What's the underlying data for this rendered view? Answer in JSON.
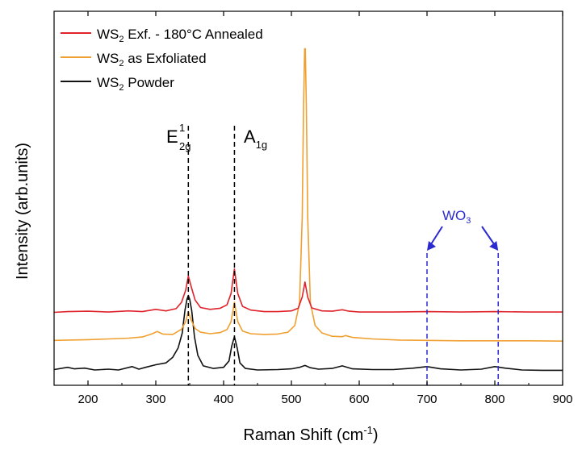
{
  "chart_data": {
    "type": "line",
    "xlabel": "Raman Shift (cm",
    "xlabel_sup": "-1",
    "xlabel_end": ")",
    "ylabel": "Intensity (arb.units)",
    "xlim": [
      150,
      900
    ],
    "ylim": [
      0,
      1
    ],
    "xticks": [
      200,
      300,
      400,
      500,
      600,
      700,
      800,
      900
    ],
    "yticks_shown": false,
    "grid": false,
    "legend_position": "top-left",
    "series": [
      {
        "name_main": "WS",
        "name_sub": "2",
        "name_rest": " Exf. - 180°C Annealed",
        "color": "#e0222a",
        "baseline": 0.195,
        "points": [
          [
            150,
            0.195
          ],
          [
            170,
            0.197
          ],
          [
            200,
            0.198
          ],
          [
            230,
            0.196
          ],
          [
            260,
            0.199
          ],
          [
            280,
            0.197
          ],
          [
            300,
            0.203
          ],
          [
            315,
            0.199
          ],
          [
            330,
            0.205
          ],
          [
            338,
            0.222
          ],
          [
            344,
            0.254
          ],
          [
            348,
            0.292
          ],
          [
            352,
            0.265
          ],
          [
            358,
            0.228
          ],
          [
            366,
            0.208
          ],
          [
            380,
            0.203
          ],
          [
            395,
            0.206
          ],
          [
            405,
            0.215
          ],
          [
            411,
            0.245
          ],
          [
            416,
            0.311
          ],
          [
            421,
            0.245
          ],
          [
            428,
            0.211
          ],
          [
            440,
            0.201
          ],
          [
            460,
            0.197
          ],
          [
            480,
            0.197
          ],
          [
            500,
            0.199
          ],
          [
            510,
            0.206
          ],
          [
            516,
            0.236
          ],
          [
            520,
            0.276
          ],
          [
            524,
            0.236
          ],
          [
            530,
            0.207
          ],
          [
            545,
            0.199
          ],
          [
            560,
            0.198
          ],
          [
            575,
            0.202
          ],
          [
            585,
            0.198
          ],
          [
            600,
            0.196
          ],
          [
            650,
            0.196
          ],
          [
            700,
            0.197
          ],
          [
            750,
            0.196
          ],
          [
            800,
            0.197
          ],
          [
            850,
            0.196
          ],
          [
            900,
            0.196
          ]
        ]
      },
      {
        "name_main": "WS",
        "name_sub": "2",
        "name_rest": " as Exfoliated",
        "color": "#f0a030",
        "baseline": 0.12,
        "points": [
          [
            150,
            0.12
          ],
          [
            170,
            0.121
          ],
          [
            200,
            0.122
          ],
          [
            230,
            0.124
          ],
          [
            260,
            0.126
          ],
          [
            280,
            0.129
          ],
          [
            295,
            0.138
          ],
          [
            302,
            0.144
          ],
          [
            310,
            0.137
          ],
          [
            325,
            0.136
          ],
          [
            338,
            0.15
          ],
          [
            344,
            0.17
          ],
          [
            348,
            0.197
          ],
          [
            352,
            0.175
          ],
          [
            358,
            0.152
          ],
          [
            366,
            0.142
          ],
          [
            380,
            0.138
          ],
          [
            395,
            0.141
          ],
          [
            405,
            0.149
          ],
          [
            411,
            0.17
          ],
          [
            416,
            0.222
          ],
          [
            421,
            0.17
          ],
          [
            428,
            0.145
          ],
          [
            440,
            0.138
          ],
          [
            460,
            0.136
          ],
          [
            480,
            0.137
          ],
          [
            495,
            0.142
          ],
          [
            505,
            0.16
          ],
          [
            512,
            0.22
          ],
          [
            516,
            0.45
          ],
          [
            518,
            0.75
          ],
          [
            519.5,
            0.9
          ],
          [
            520.5,
            0.9
          ],
          [
            522,
            0.75
          ],
          [
            524,
            0.45
          ],
          [
            528,
            0.22
          ],
          [
            535,
            0.16
          ],
          [
            545,
            0.14
          ],
          [
            560,
            0.131
          ],
          [
            575,
            0.13
          ],
          [
            580,
            0.133
          ],
          [
            590,
            0.128
          ],
          [
            620,
            0.124
          ],
          [
            660,
            0.121
          ],
          [
            700,
            0.12
          ],
          [
            750,
            0.119
          ],
          [
            800,
            0.119
          ],
          [
            850,
            0.119
          ],
          [
            900,
            0.118
          ]
        ]
      },
      {
        "name_main": "WS",
        "name_sub": "2",
        "name_rest": " Powder",
        "color": "#111111",
        "baseline": 0.04,
        "points": [
          [
            150,
            0.042
          ],
          [
            170,
            0.048
          ],
          [
            180,
            0.044
          ],
          [
            195,
            0.046
          ],
          [
            210,
            0.041
          ],
          [
            230,
            0.043
          ],
          [
            245,
            0.041
          ],
          [
            265,
            0.05
          ],
          [
            275,
            0.043
          ],
          [
            285,
            0.048
          ],
          [
            300,
            0.055
          ],
          [
            315,
            0.06
          ],
          [
            325,
            0.075
          ],
          [
            333,
            0.1
          ],
          [
            339,
            0.14
          ],
          [
            343,
            0.2
          ],
          [
            346,
            0.23
          ],
          [
            348,
            0.24
          ],
          [
            350,
            0.23
          ],
          [
            353,
            0.2
          ],
          [
            357,
            0.13
          ],
          [
            362,
            0.08
          ],
          [
            370,
            0.052
          ],
          [
            385,
            0.045
          ],
          [
            400,
            0.048
          ],
          [
            408,
            0.065
          ],
          [
            412,
            0.105
          ],
          [
            416,
            0.13
          ],
          [
            420,
            0.1
          ],
          [
            424,
            0.06
          ],
          [
            432,
            0.045
          ],
          [
            450,
            0.041
          ],
          [
            480,
            0.042
          ],
          [
            500,
            0.044
          ],
          [
            512,
            0.048
          ],
          [
            520,
            0.053
          ],
          [
            528,
            0.047
          ],
          [
            540,
            0.043
          ],
          [
            560,
            0.045
          ],
          [
            575,
            0.052
          ],
          [
            590,
            0.044
          ],
          [
            620,
            0.042
          ],
          [
            650,
            0.042
          ],
          [
            680,
            0.046
          ],
          [
            700,
            0.05
          ],
          [
            720,
            0.044
          ],
          [
            750,
            0.041
          ],
          [
            780,
            0.043
          ],
          [
            800,
            0.05
          ],
          [
            815,
            0.046
          ],
          [
            840,
            0.041
          ],
          [
            870,
            0.04
          ],
          [
            900,
            0.04
          ]
        ]
      }
    ],
    "annotations": [
      {
        "name": "e2g-line",
        "label": "E",
        "sub": "2g",
        "sup": "1",
        "x": 348,
        "color": "#000000"
      },
      {
        "name": "a1g-line",
        "label": "A",
        "sub": "1g",
        "sup": "",
        "x": 416,
        "color": "#000000"
      }
    ],
    "wo3": {
      "label": "WO",
      "sub": "3",
      "x1": 700,
      "x2": 805,
      "color": "#2a2ad0"
    }
  }
}
